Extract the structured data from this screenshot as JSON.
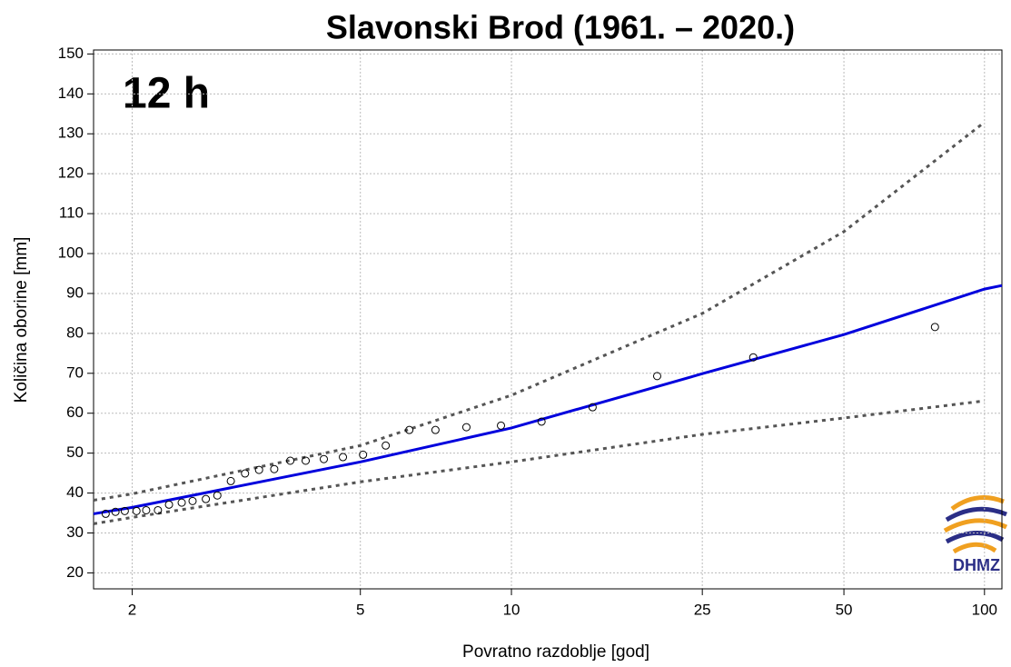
{
  "chart_data": {
    "type": "scatter",
    "title": "Slavonski Brod (1961. – 2020.)",
    "annotation": "12 h",
    "logo": "DHMZ",
    "x_label": "Povratno razdoblje [god]",
    "y_label": "Količina oborine [mm]",
    "xscale": "gumbel",
    "xlim": [
      1.76,
      109
    ],
    "xticks": [
      2,
      5,
      10,
      25,
      50,
      100
    ],
    "ylim": [
      16,
      151
    ],
    "yticks": [
      20,
      30,
      40,
      50,
      60,
      70,
      80,
      90,
      100,
      110,
      120,
      130,
      140,
      150
    ],
    "grid": true,
    "points": {
      "color": "#000000",
      "x": [
        1.83,
        1.89,
        1.95,
        2.03,
        2.1,
        2.19,
        2.28,
        2.39,
        2.49,
        2.62,
        2.74,
        2.89,
        3.06,
        3.24,
        3.45,
        3.69,
        3.94,
        4.26,
        4.63,
        5.06,
        5.6,
        6.23,
        7.02,
        8.1,
        9.52,
        11.53,
        14.71,
        20.08,
        32.05,
        78.3
      ],
      "values": [
        34.8,
        35.3,
        35.5,
        35.5,
        35.7,
        35.7,
        37.1,
        37.6,
        38.0,
        38.5,
        39.4,
        43.0,
        44.9,
        45.8,
        46.0,
        48.1,
        48.1,
        48.5,
        49.0,
        49.6,
        51.9,
        55.8,
        55.8,
        56.5,
        56.9,
        57.9,
        61.5,
        69.3,
        74.0,
        81.6
      ]
    },
    "lines": [
      {
        "color": "#0000dd",
        "dash": false,
        "x": [
          1.76,
          2,
          5,
          10,
          25,
          50,
          100,
          109
        ],
        "values": [
          34.8,
          36.4,
          47.8,
          56.3,
          69.9,
          79.7,
          91.1,
          92.0
        ]
      },
      {
        "color": "#555555",
        "dash": true,
        "x": [
          1.76,
          2,
          5,
          10,
          25,
          50,
          100
        ],
        "values": [
          38.2,
          39.8,
          51.9,
          64.5,
          85.0,
          105.5,
          132.9
        ]
      },
      {
        "color": "#555555",
        "dash": true,
        "x": [
          1.76,
          2,
          5,
          10,
          25,
          50,
          100
        ],
        "values": [
          32.3,
          33.9,
          42.8,
          47.8,
          54.7,
          58.8,
          63.1
        ]
      }
    ]
  }
}
